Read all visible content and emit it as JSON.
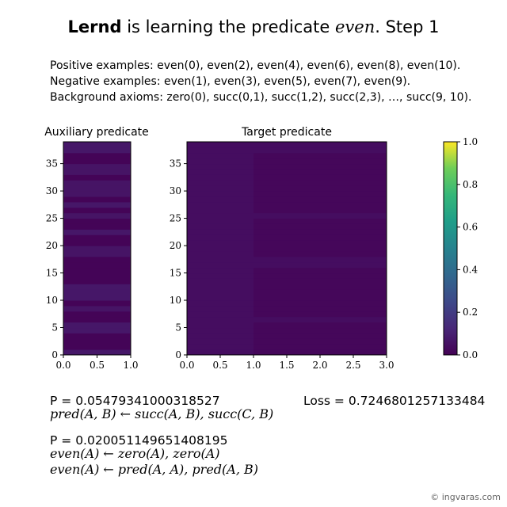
{
  "title": {
    "brand": "Lernd",
    "middle": "is learning the predicate",
    "predicate": "even",
    "step": ". Step 1"
  },
  "examples": {
    "positive": "Positive examples: even(0), even(2), even(4), even(6), even(8), even(10).",
    "negative": "Negative examples: even(1), even(3), even(5), even(7), even(9).",
    "background": "Background axioms: zero(0), succ(0,1), succ(1,2), succ(2,3), …, succ(9, 10)."
  },
  "chart_data": [
    {
      "type": "heatmap",
      "title": "Auxiliary predicate",
      "xlim": [
        0,
        1
      ],
      "ylim": [
        0,
        39
      ],
      "xticks": [
        "0.0",
        "0.5",
        "1.0"
      ],
      "yticks": [
        "0",
        "5",
        "10",
        "15",
        "20",
        "25",
        "30",
        "35"
      ],
      "values": [
        [
          0.07
        ],
        [
          0.01
        ],
        [
          0.01
        ],
        [
          0.01
        ],
        [
          0.07
        ],
        [
          0.07
        ],
        [
          0.01
        ],
        [
          0.01
        ],
        [
          0.06
        ],
        [
          0.01
        ],
        [
          0.07
        ],
        [
          0.07
        ],
        [
          0.07
        ],
        [
          0.01
        ],
        [
          0.01
        ],
        [
          0.01
        ],
        [
          0.01
        ],
        [
          0.01
        ],
        [
          0.06
        ],
        [
          0.06
        ],
        [
          0.01
        ],
        [
          0.01
        ],
        [
          0.07
        ],
        [
          0.01
        ],
        [
          0.01
        ],
        [
          0.06
        ],
        [
          0.01
        ],
        [
          0.07
        ],
        [
          0.01
        ],
        [
          0.06
        ],
        [
          0.06
        ],
        [
          0.06
        ],
        [
          0.01
        ],
        [
          0.06
        ],
        [
          0.06
        ],
        [
          0.01
        ],
        [
          0.01
        ],
        [
          0.07
        ],
        [
          0.07
        ]
      ]
    },
    {
      "type": "heatmap",
      "title": "Target predicate",
      "xlim": [
        0,
        3
      ],
      "ylim": [
        0,
        39
      ],
      "xticks": [
        "0.0",
        "0.5",
        "1.0",
        "1.5",
        "2.0",
        "2.5",
        "3.0"
      ],
      "yticks": [
        "0",
        "5",
        "10",
        "15",
        "20",
        "25",
        "30",
        "35"
      ],
      "values": [
        [
          0.04,
          0.02,
          0.02
        ],
        [
          0.04,
          0.02,
          0.02
        ],
        [
          0.04,
          0.02,
          0.02
        ],
        [
          0.04,
          0.02,
          0.02
        ],
        [
          0.04,
          0.02,
          0.02
        ],
        [
          0.04,
          0.02,
          0.02
        ],
        [
          0.04,
          0.04,
          0.04
        ],
        [
          0.04,
          0.02,
          0.02
        ],
        [
          0.04,
          0.02,
          0.02
        ],
        [
          0.04,
          0.02,
          0.02
        ],
        [
          0.04,
          0.02,
          0.02
        ],
        [
          0.04,
          0.02,
          0.02
        ],
        [
          0.04,
          0.02,
          0.02
        ],
        [
          0.04,
          0.02,
          0.02
        ],
        [
          0.04,
          0.02,
          0.02
        ],
        [
          0.04,
          0.02,
          0.02
        ],
        [
          0.04,
          0.04,
          0.04
        ],
        [
          0.04,
          0.04,
          0.04
        ],
        [
          0.04,
          0.02,
          0.02
        ],
        [
          0.04,
          0.02,
          0.02
        ],
        [
          0.04,
          0.02,
          0.02
        ],
        [
          0.04,
          0.02,
          0.02
        ],
        [
          0.04,
          0.02,
          0.02
        ],
        [
          0.04,
          0.02,
          0.02
        ],
        [
          0.04,
          0.02,
          0.02
        ],
        [
          0.04,
          0.04,
          0.04
        ],
        [
          0.04,
          0.02,
          0.02
        ],
        [
          0.04,
          0.02,
          0.02
        ],
        [
          0.04,
          0.02,
          0.02
        ],
        [
          0.04,
          0.02,
          0.02
        ],
        [
          0.04,
          0.02,
          0.02
        ],
        [
          0.04,
          0.02,
          0.02
        ],
        [
          0.04,
          0.02,
          0.02
        ],
        [
          0.04,
          0.02,
          0.02
        ],
        [
          0.04,
          0.02,
          0.02
        ],
        [
          0.04,
          0.02,
          0.02
        ],
        [
          0.04,
          0.02,
          0.02
        ],
        [
          0.04,
          0.04,
          0.04
        ],
        [
          0.04,
          0.04,
          0.04
        ]
      ]
    },
    {
      "type": "colorbar",
      "colormap": "viridis",
      "ylim": [
        0,
        1
      ],
      "yticks": [
        "0.0",
        "0.2",
        "0.4",
        "0.6",
        "0.8",
        "1.0"
      ]
    }
  ],
  "results": {
    "p1": "P = 0.05479341000318527",
    "loss": "Loss = 0.7246801257133484",
    "rule1": "pred(A, B) ← succ(A, B), succ(C, B)",
    "p2": "P = 0.020051149651408195",
    "rule2": "even(A) ← zero(A), zero(A)",
    "rule3": "even(A) ← pred(A, A), pred(A, B)"
  },
  "watermark": "© ingvaras.com"
}
